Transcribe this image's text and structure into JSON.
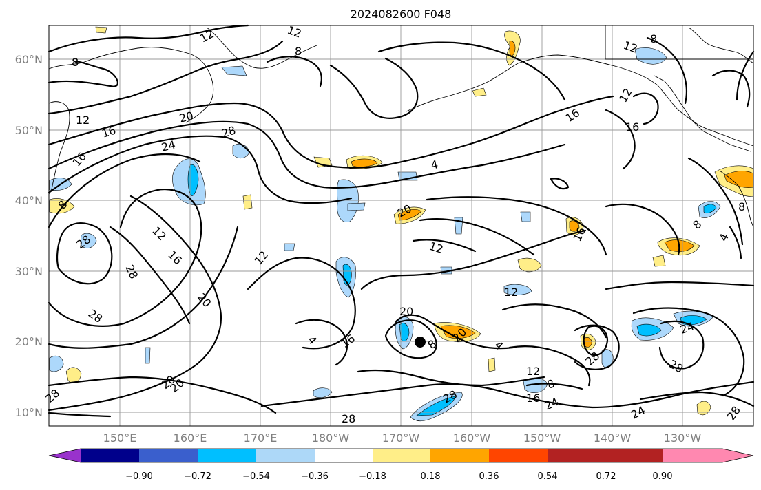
{
  "title": "2024082600 F048",
  "lat_labels": [
    "60°N",
    "50°N",
    "40°N",
    "30°N",
    "20°N",
    "10°N"
  ],
  "lon_labels": [
    "150°E",
    "160°E",
    "170°E",
    "180°W",
    "170°W",
    "160°W",
    "150°W",
    "140°W",
    "130°W"
  ],
  "colorbar": {
    "ticks": [
      "−0.90",
      "−0.72",
      "−0.54",
      "−0.36",
      "−0.18",
      "0.18",
      "0.36",
      "0.54",
      "0.72",
      "0.90"
    ],
    "colors": [
      "#9932cc",
      "#00008b",
      "#3a5fcd",
      "#00bfff",
      "#add8f8",
      "#ffffff",
      "#ffee88",
      "#ffa500",
      "#ff4500",
      "#b22222",
      "#ff88b0"
    ]
  },
  "contour_labels": [
    {
      "text": "12"
    },
    {
      "text": "8"
    },
    {
      "text": "8"
    },
    {
      "text": "12"
    },
    {
      "text": "8"
    },
    {
      "text": "12"
    },
    {
      "text": "16"
    },
    {
      "text": "20"
    },
    {
      "text": "28"
    },
    {
      "text": "24"
    },
    {
      "text": "16"
    },
    {
      "text": "8"
    },
    {
      "text": "4"
    },
    {
      "text": "16"
    },
    {
      "text": "12"
    },
    {
      "text": "16"
    },
    {
      "text": "12"
    },
    {
      "text": "16"
    },
    {
      "text": "28"
    },
    {
      "text": "12"
    },
    {
      "text": "20"
    },
    {
      "text": "12"
    },
    {
      "text": "28"
    },
    {
      "text": "20"
    },
    {
      "text": "12"
    },
    {
      "text": "12"
    },
    {
      "text": "16"
    },
    {
      "text": "20"
    },
    {
      "text": "4"
    },
    {
      "text": "8"
    },
    {
      "text": "4"
    },
    {
      "text": "8"
    },
    {
      "text": "20"
    },
    {
      "text": "8"
    },
    {
      "text": "20"
    },
    {
      "text": "16"
    },
    {
      "text": "4"
    },
    {
      "text": "12"
    },
    {
      "text": "28"
    },
    {
      "text": "24"
    },
    {
      "text": "28"
    },
    {
      "text": "28"
    },
    {
      "text": "16"
    },
    {
      "text": "24"
    },
    {
      "text": "28"
    },
    {
      "text": "28"
    },
    {
      "text": "24"
    },
    {
      "text": "28"
    },
    {
      "text": "20"
    },
    {
      "text": "28"
    },
    {
      "text": "8"
    }
  ]
}
